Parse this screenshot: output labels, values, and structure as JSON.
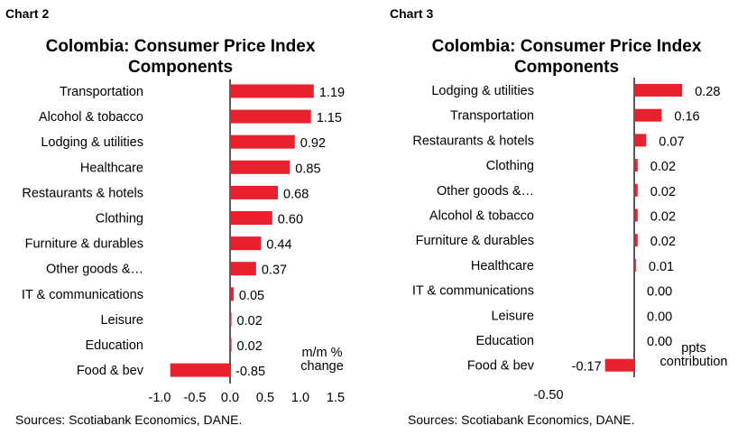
{
  "chart_data": [
    {
      "type": "bar",
      "orientation": "horizontal",
      "label": "Chart 2",
      "title": "Colombia: Consumer Price Index Components",
      "title_lines": [
        "Colombia: Consumer Price Index",
        "Components"
      ],
      "categories": [
        "Transportation",
        "Alcohol & tobacco",
        "Lodging & utilities",
        "Healthcare",
        "Restaurants & hotels",
        "Clothing",
        "Furniture & durables",
        "Other goods &…",
        "IT & communications",
        "Leisure",
        "Education",
        "Food & bev"
      ],
      "values": [
        1.19,
        1.15,
        0.92,
        0.85,
        0.68,
        0.6,
        0.44,
        0.37,
        0.05,
        0.02,
        0.02,
        -0.85
      ],
      "value_labels": [
        "1.19",
        "1.15",
        "0.92",
        "0.85",
        "0.68",
        "0.60",
        "0.44",
        "0.37",
        "0.05",
        "0.02",
        "0.02",
        "-0.85"
      ],
      "xlim": [
        -1.0,
        1.5
      ],
      "xticks": [
        "-1.0",
        "-0.5",
        "0.0",
        "0.5",
        "1.0",
        "1.5"
      ],
      "unit_label_lines": [
        "m/m %",
        "change"
      ],
      "bar_color": "#e8212f",
      "source": "Sources: Scotiabank Economics, DANE."
    },
    {
      "type": "bar",
      "orientation": "horizontal",
      "label": "Chart 3",
      "title": "Colombia: Consumer Price Index Components",
      "title_lines": [
        "Colombia: Consumer Price Index",
        "Components"
      ],
      "categories": [
        "Lodging & utilities",
        "Transportation",
        "Restaurants & hotels",
        "Clothing",
        "Other goods &…",
        "Alcohol & tobacco",
        "Furniture & durables",
        "Healthcare",
        "IT & communications",
        "Leisure",
        "Education",
        "Food & bev"
      ],
      "values": [
        0.28,
        0.16,
        0.07,
        0.02,
        0.02,
        0.02,
        0.02,
        0.01,
        0.0,
        0.0,
        0.0,
        -0.17
      ],
      "value_labels": [
        "0.28",
        "0.16",
        "0.07",
        "0.02",
        "0.02",
        "0.02",
        "0.02",
        "0.01",
        "0.00",
        "0.00",
        "0.00",
        "-0.17"
      ],
      "xlim": [
        -0.5,
        0.5
      ],
      "xticks": [
        "-0.50"
      ],
      "unit_label_lines": [
        "ppts",
        "contribution"
      ],
      "bar_color": "#e8212f",
      "source": "Sources: Scotiabank Economics, DANE."
    }
  ]
}
